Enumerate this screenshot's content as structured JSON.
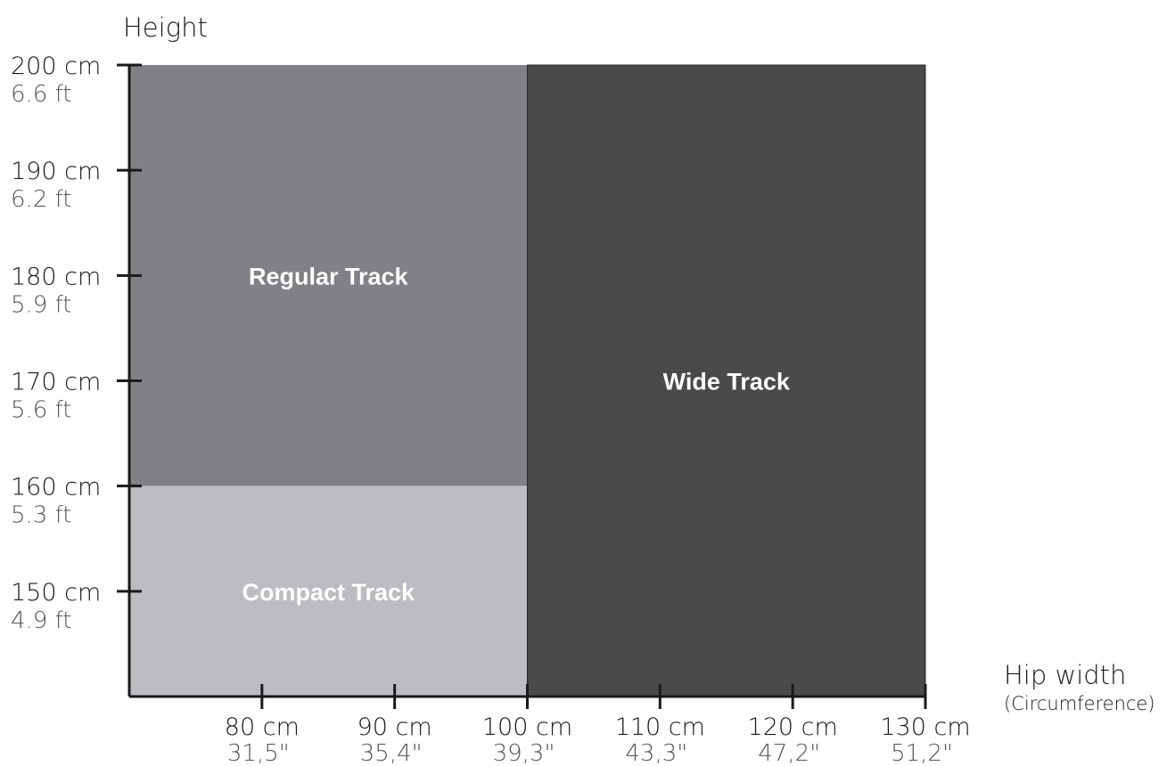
{
  "chart_data": {
    "type": "area",
    "ylabel": "Height",
    "xlabel": "Hip width",
    "xlabel_note": "(Circumference)",
    "xlim": [
      70,
      130
    ],
    "ylim": [
      140,
      200
    ],
    "x_ticks": [
      {
        "value": 80,
        "label": "80 cm",
        "sub": "31,5\""
      },
      {
        "value": 90,
        "label": "90 cm",
        "sub": "35,4\""
      },
      {
        "value": 100,
        "label": "100 cm",
        "sub": "39,3\""
      },
      {
        "value": 110,
        "label": "110 cm",
        "sub": "43,3\""
      },
      {
        "value": 120,
        "label": "120 cm",
        "sub": "47,2\""
      },
      {
        "value": 130,
        "label": "130 cm",
        "sub": "51,2\""
      }
    ],
    "y_ticks": [
      {
        "value": 200,
        "label": "200 cm",
        "sub": "6.6 ft"
      },
      {
        "value": 190,
        "label": "190 cm",
        "sub": "6.2 ft"
      },
      {
        "value": 180,
        "label": "180 cm",
        "sub": "5.9 ft"
      },
      {
        "value": 170,
        "label": "170 cm",
        "sub": "5.6 ft"
      },
      {
        "value": 160,
        "label": "160 cm",
        "sub": "5.3 ft"
      },
      {
        "value": 150,
        "label": "150 cm",
        "sub": "4.9 ft"
      }
    ],
    "regions": [
      {
        "name": "Regular Track",
        "x": [
          70,
          100
        ],
        "y": [
          160,
          200
        ],
        "color": "#808185"
      },
      {
        "name": "Compact Track",
        "x": [
          70,
          100
        ],
        "y": [
          140,
          160
        ],
        "color": "#bcbdc0"
      },
      {
        "name": "Wide Track",
        "x": [
          100,
          130
        ],
        "y": [
          140,
          200
        ],
        "color": "#4a4a4a"
      }
    ],
    "grid": false,
    "legend": "none"
  }
}
